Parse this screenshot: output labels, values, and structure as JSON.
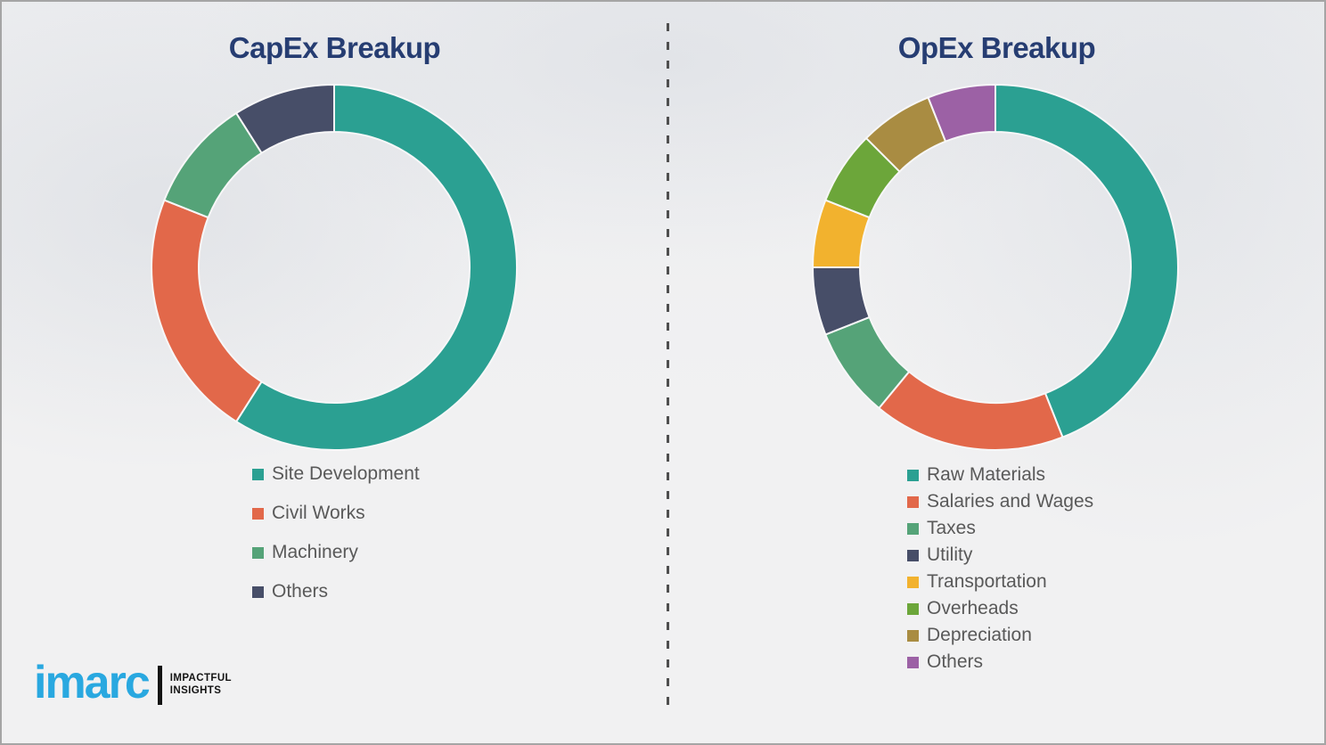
{
  "page": {
    "background_color": "#f1f1f2",
    "title_color": "#263d72",
    "legend_text_color": "#595959"
  },
  "chart_data": [
    {
      "type": "pie",
      "subtype": "donut",
      "title": "CapEx Breakup",
      "categories": [
        "Site Development",
        "Civil Works",
        "Machinery",
        "Others"
      ],
      "values": [
        59,
        22,
        10,
        9
      ],
      "unit": "percent",
      "colors": [
        "#2BA092",
        "#E2684A",
        "#55A378",
        "#474E68"
      ],
      "legend_position": "bottom-left",
      "start_angle_deg": 0,
      "direction": "clockwise"
    },
    {
      "type": "pie",
      "subtype": "donut",
      "title": "OpEx Breakup",
      "categories": [
        "Raw Materials",
        "Salaries and Wages",
        "Taxes",
        "Utility",
        "Transportation",
        "Overheads",
        "Depreciation",
        "Others"
      ],
      "values": [
        44,
        17,
        8,
        6,
        6,
        6.5,
        6.5,
        6
      ],
      "unit": "percent",
      "colors": [
        "#2BA092",
        "#E2684A",
        "#55A378",
        "#474E68",
        "#F2B22E",
        "#6CA63A",
        "#A98C42",
        "#9C61A5"
      ],
      "legend_position": "bottom-left",
      "start_angle_deg": 0,
      "direction": "clockwise"
    }
  ],
  "divider": {
    "style": "dashed-vertical",
    "color": "#4f4f4f"
  },
  "logo": {
    "brand": "imarc",
    "brand_color": "#29a8e0",
    "tagline_line1": "IMPACTFUL",
    "tagline_line2": "INSIGHTS"
  }
}
